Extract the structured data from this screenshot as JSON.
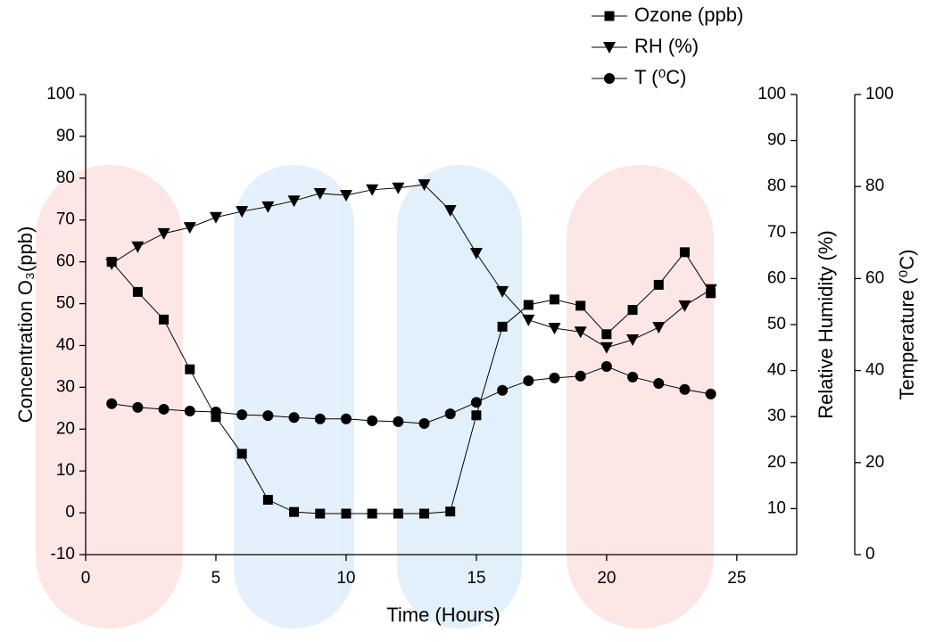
{
  "chart_data": {
    "type": "line",
    "xlabel": "Time (Hours)",
    "ylabel": "Concentration O₃(ppb)",
    "y2label": "Relative Humidity (%)",
    "y3label": "Temperature (⁰C)",
    "x": [
      1,
      2,
      3,
      4,
      5,
      6,
      7,
      8,
      9,
      10,
      11,
      12,
      13,
      14,
      15,
      16,
      17,
      18,
      19,
      20,
      21,
      22,
      23,
      24
    ],
    "xlim": [
      0,
      27.3
    ],
    "xticks": [
      0,
      5,
      10,
      15,
      20,
      25
    ],
    "ylim": [
      -10,
      100
    ],
    "yticks": [
      -10,
      0,
      10,
      20,
      30,
      40,
      50,
      60,
      70,
      80,
      90,
      100
    ],
    "y2lim": [
      0,
      100
    ],
    "y2ticks": [
      10,
      20,
      30,
      40,
      50,
      60,
      70,
      80,
      90,
      100
    ],
    "y3lim": [
      0,
      100
    ],
    "y3ticks": [
      0,
      20,
      40,
      60,
      80,
      100
    ],
    "legend": "top right",
    "series": [
      {
        "name": "Ozone (ppb)",
        "color": "#000000",
        "marker": "square",
        "axis": "y",
        "values": [
          60,
          52.8,
          46.2,
          34.3,
          22.9,
          14.1,
          3.1,
          0.2,
          -0.2,
          -0.2,
          -0.2,
          -0.2,
          -0.2,
          0.3,
          23.3,
          44.5,
          49.7,
          51,
          49.5,
          42.7,
          48.5,
          54.5,
          62.3,
          52.5
        ]
      },
      {
        "name": "RH (%)",
        "color": "#000000",
        "marker": "triangle-down",
        "axis": "y2",
        "values": [
          63.2,
          66.9,
          69.8,
          71.1,
          73.3,
          74.6,
          75.6,
          76.9,
          78.5,
          78.1,
          79.3,
          79.7,
          80.4,
          74.8,
          65.5,
          57.2,
          51,
          49.2,
          48.4,
          45,
          46.7,
          49.4,
          54.1,
          57.6
        ]
      },
      {
        "name": "T (⁰C)",
        "color": "#000000",
        "marker": "circle",
        "axis": "y3",
        "values": [
          32.8,
          32,
          31.6,
          31.2,
          31,
          30.4,
          30.2,
          29.8,
          29.5,
          29.5,
          29.1,
          28.9,
          28.5,
          30.6,
          33.1,
          35.7,
          37.8,
          38.4,
          38.8,
          40.9,
          38.6,
          37.2,
          35.9,
          34.9
        ]
      }
    ]
  }
}
